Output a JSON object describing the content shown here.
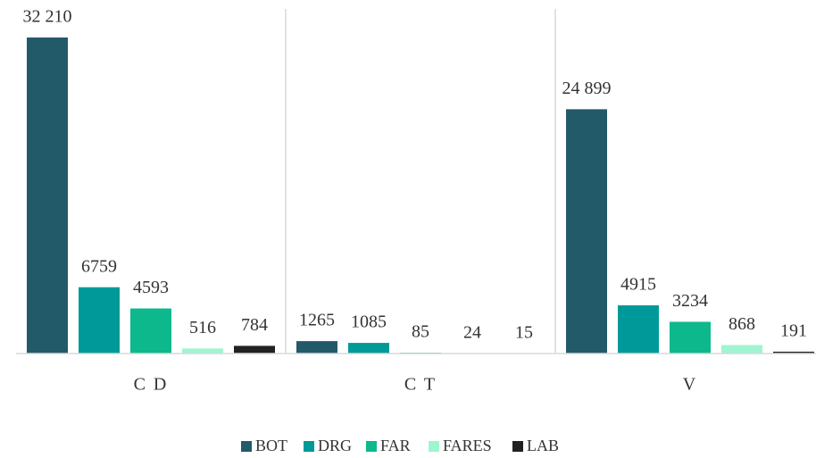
{
  "chart_data": {
    "type": "bar",
    "categories": [
      "C D",
      "C T",
      "V"
    ],
    "series": [
      {
        "name": "BOT",
        "color": "#225a6a",
        "values": [
          32210,
          1265,
          24899
        ],
        "value_labels": [
          "32 210",
          "1265",
          "24 899"
        ]
      },
      {
        "name": "DRG",
        "color": "#00999a",
        "values": [
          6759,
          1085,
          4915
        ]
      },
      {
        "name": "FAR",
        "color": "#0db88c",
        "values": [
          4593,
          85,
          3234
        ]
      },
      {
        "name": "FARES",
        "color": "#9ef5d0",
        "values": [
          516,
          24,
          868
        ]
      },
      {
        "name": "LAB",
        "color": "#222222",
        "values": [
          784,
          15,
          191
        ]
      }
    ],
    "legend": "bottom"
  }
}
